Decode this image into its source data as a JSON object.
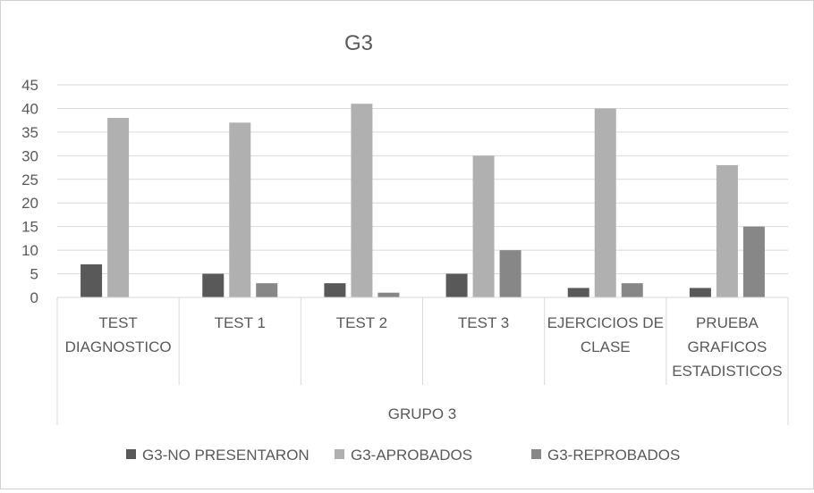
{
  "chart_data": {
    "type": "bar",
    "title": "G3",
    "group_label": "GRUPO 3",
    "categories": [
      [
        "TEST",
        "DIAGNOSTICO"
      ],
      [
        "TEST 1"
      ],
      [
        "TEST 2"
      ],
      [
        "TEST 3"
      ],
      [
        "EJERCICIOS DE",
        "CLASE"
      ],
      [
        "PRUEBA",
        "GRAFICOS",
        "ESTADISTICOS"
      ]
    ],
    "series": [
      {
        "name": "G3-NO PRESENTARON",
        "color": "#595959",
        "values": [
          7,
          5,
          3,
          5,
          2,
          2
        ]
      },
      {
        "name": "G3-APROBADOS",
        "color": "#b0b0b0",
        "values": [
          38,
          37,
          41,
          30,
          40,
          28
        ]
      },
      {
        "name": "G3-REPROBADOS",
        "color": "#878787",
        "values": [
          0,
          3,
          1,
          10,
          3,
          15
        ]
      }
    ],
    "y_ticks": [
      "0",
      "5",
      "10",
      "15",
      "20",
      "25",
      "30",
      "35",
      "40",
      "45"
    ],
    "ylim": [
      0,
      45
    ],
    "grid": true,
    "legend_position": "bottom"
  }
}
